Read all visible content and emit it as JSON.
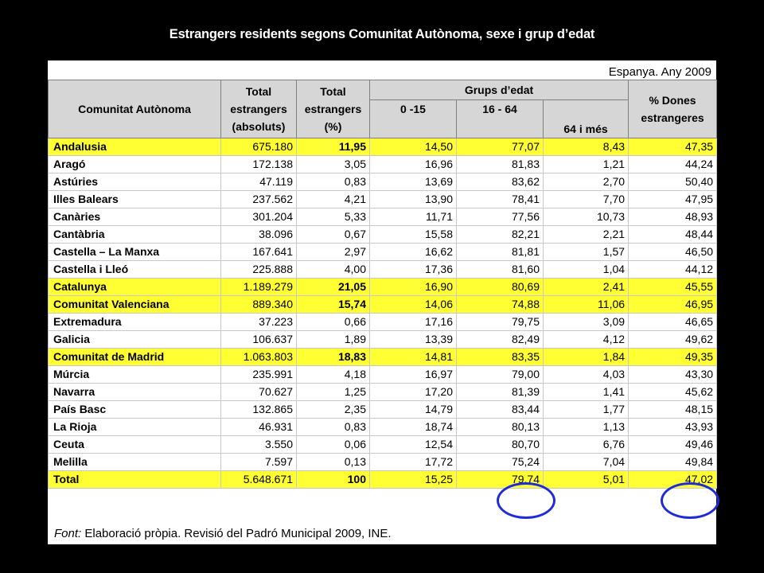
{
  "title": "Estrangers residents segons Comunitat Autònoma, sexe i grup d’edat",
  "region_year": "Espanya. Any 2009",
  "headers": {
    "community": "Comunitat Autònoma",
    "total_abs_line1": "Total",
    "total_abs_line2": "estrangers",
    "total_abs_line3": "(absoluts)",
    "total_pct_line1": "Total",
    "total_pct_line2": "estrangers",
    "total_pct_line3": "(%)",
    "age_groups": "Grups d’edat",
    "age_0_15": "0 -15",
    "age_16_64": "16 - 64",
    "age_65_plus": "64 i més",
    "women_line1": "% Dones",
    "women_line2": "estrangeres"
  },
  "rows": [
    {
      "name": "Andalusia",
      "abs": "675.180",
      "pct": "11,95",
      "a": "14,50",
      "b": "77,07",
      "c": "8,43",
      "w": "47,35",
      "highlight": true
    },
    {
      "name": "Aragó",
      "abs": "172.138",
      "pct": "3,05",
      "a": "16,96",
      "b": "81,83",
      "c": "1,21",
      "w": "44,24",
      "highlight": false
    },
    {
      "name": "Astúries",
      "abs": "47.119",
      "pct": "0,83",
      "a": "13,69",
      "b": "83,62",
      "c": "2,70",
      "w": "50,40",
      "highlight": false
    },
    {
      "name": "Illes Balears",
      "abs": "237.562",
      "pct": "4,21",
      "a": "13,90",
      "b": "78,41",
      "c": "7,70",
      "w": "47,95",
      "highlight": false
    },
    {
      "name": "Canàries",
      "abs": "301.204",
      "pct": "5,33",
      "a": "11,71",
      "b": "77,56",
      "c": "10,73",
      "w": "48,93",
      "highlight": false
    },
    {
      "name": "Cantàbria",
      "abs": "38.096",
      "pct": "0,67",
      "a": "15,58",
      "b": "82,21",
      "c": "2,21",
      "w": "48,44",
      "highlight": false
    },
    {
      "name": "Castella – La Manxa",
      "abs": "167.641",
      "pct": "2,97",
      "a": "16,62",
      "b": "81,81",
      "c": "1,57",
      "w": "46,50",
      "highlight": false
    },
    {
      "name": "Castella i Lleó",
      "abs": "225.888",
      "pct": "4,00",
      "a": "17,36",
      "b": "81,60",
      "c": "1,04",
      "w": "44,12",
      "highlight": false
    },
    {
      "name": "Catalunya",
      "abs": "1.189.279",
      "pct": "21,05",
      "a": "16,90",
      "b": "80,69",
      "c": "2,41",
      "w": "45,55",
      "highlight": true
    },
    {
      "name": "Comunitat Valenciana",
      "abs": "889.340",
      "pct": "15,74",
      "a": "14,06",
      "b": "74,88",
      "c": "11,06",
      "w": "46,95",
      "highlight": true
    },
    {
      "name": "Extremadura",
      "abs": "37.223",
      "pct": "0,66",
      "a": "17,16",
      "b": "79,75",
      "c": "3,09",
      "w": "46,65",
      "highlight": false
    },
    {
      "name": "Galicia",
      "abs": "106.637",
      "pct": "1,89",
      "a": "13,39",
      "b": "82,49",
      "c": "4,12",
      "w": "49,62",
      "highlight": false
    },
    {
      "name": "Comunitat de Madrid",
      "abs": "1.063.803",
      "pct": "18,83",
      "a": "14,81",
      "b": "83,35",
      "c": "1,84",
      "w": "49,35",
      "highlight": true
    },
    {
      "name": "Múrcia",
      "abs": "235.991",
      "pct": "4,18",
      "a": "16,97",
      "b": "79,00",
      "c": "4,03",
      "w": "43,30",
      "highlight": false
    },
    {
      "name": "Navarra",
      "abs": "70.627",
      "pct": "1,25",
      "a": "17,20",
      "b": "81,39",
      "c": "1,41",
      "w": "45,62",
      "highlight": false
    },
    {
      "name": "País Basc",
      "abs": "132.865",
      "pct": "2,35",
      "a": "14,79",
      "b": "83,44",
      "c": "1,77",
      "w": "48,15",
      "highlight": false
    },
    {
      "name": "La Rioja",
      "abs": "46.931",
      "pct": "0,83",
      "a": "18,74",
      "b": "80,13",
      "c": "1,13",
      "w": "43,93",
      "highlight": false
    },
    {
      "name": "Ceuta",
      "abs": "3.550",
      "pct": "0,06",
      "a": "12,54",
      "b": "80,70",
      "c": "6,76",
      "w": "49,46",
      "highlight": false
    },
    {
      "name": "Melilla",
      "abs": "7.597",
      "pct": "0,13",
      "a": "17,72",
      "b": "75,24",
      "c": "7,04",
      "w": "49,84",
      "highlight": false
    }
  ],
  "total_row": {
    "name": "Total",
    "abs": "5.648.671",
    "pct": "100",
    "a": "15,25",
    "b": "79,74",
    "c": "5,01",
    "w": "47,02"
  },
  "source": {
    "label": "Font:",
    "text": " Elaboració pròpia. Revisió del Padró Municipal 2009, INE."
  },
  "colors": {
    "highlight": "#ffff33",
    "header": "#d6d6d6",
    "circle": "#1f2bd6"
  }
}
